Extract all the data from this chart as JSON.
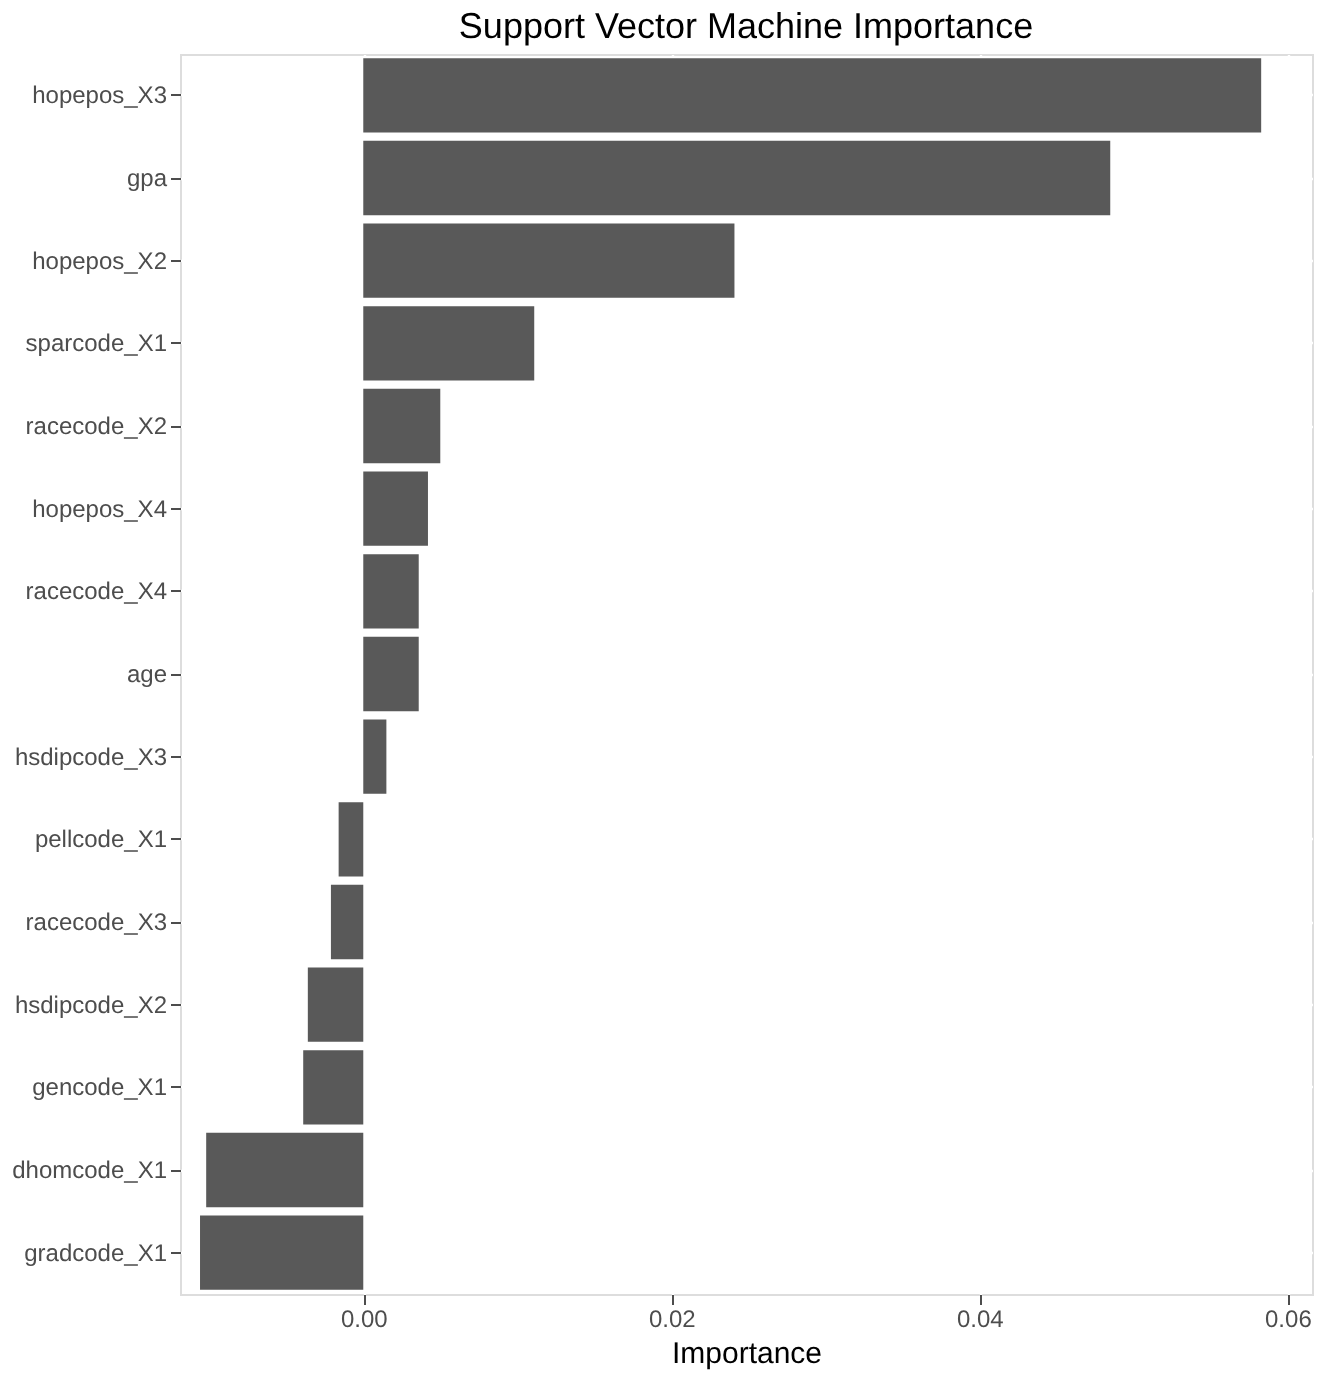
{
  "chart_data": {
    "type": "bar",
    "orientation": "horizontal",
    "title": "Support Vector Machine Importance",
    "xlabel": "Importance",
    "categories": [
      "hopepos_X3",
      "gpa",
      "hopepos_X2",
      "sparcode_X1",
      "racecode_X2",
      "hopepos_X4",
      "racecode_X4",
      "age",
      "hsdipcode_X3",
      "pellcode_X1",
      "racecode_X3",
      "hsdipcode_X2",
      "gencode_X1",
      "dhomcode_X1",
      "gradcode_X1"
    ],
    "values": [
      0.0583,
      0.0485,
      0.0241,
      0.0111,
      0.005,
      0.0042,
      0.0036,
      0.0036,
      0.0015,
      -0.0016,
      -0.0021,
      -0.0036,
      -0.0039,
      -0.0102,
      -0.0106
    ],
    "color": "#595959",
    "xlim": [
      -0.0119,
      0.0616
    ],
    "xticks": [
      {
        "value": 0,
        "label": "0.00"
      },
      {
        "value": 0.02,
        "label": "0.02"
      },
      {
        "value": 0.04,
        "label": "0.04"
      },
      {
        "value": 0.06,
        "label": "0.06"
      }
    ],
    "grid": true
  }
}
